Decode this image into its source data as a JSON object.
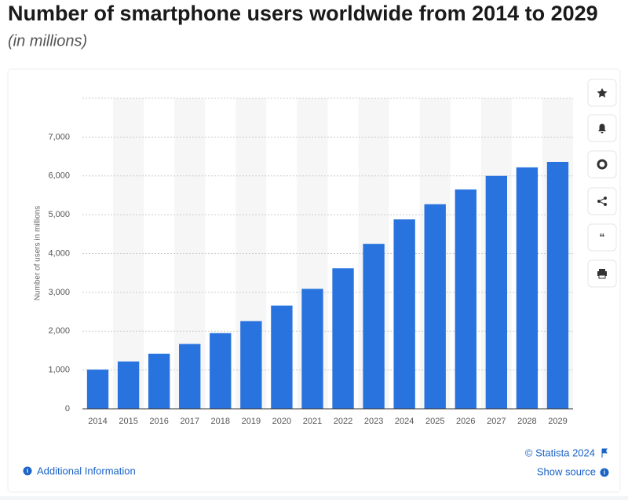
{
  "chart_data": {
    "type": "bar",
    "title": "Number of smartphone users worldwide from 2014 to 2029",
    "subtitle": "(in millions)",
    "y_label": "Number of users in millions",
    "categories": [
      "2014",
      "2015",
      "2016",
      "2017",
      "2018",
      "2019",
      "2020",
      "2021",
      "2022",
      "2023",
      "2024",
      "2025",
      "2026",
      "2027",
      "2028",
      "2029"
    ],
    "values": [
      1010,
      1220,
      1420,
      1670,
      1950,
      2260,
      2660,
      3090,
      3620,
      4250,
      4880,
      5270,
      5650,
      6000,
      6220,
      6360
    ],
    "color": "#2873de",
    "ylim": [
      0,
      8000
    ],
    "yticks": [
      0,
      {
        "value": 1000,
        "label": "1,000"
      },
      {
        "value": 2000,
        "label": "2,000"
      },
      {
        "value": 3000,
        "label": "3,000"
      },
      {
        "value": 4000,
        "label": "4,000"
      },
      {
        "value": 5000,
        "label": "5,000"
      },
      {
        "value": 6000,
        "label": "6,000"
      },
      {
        "value": 7000,
        "label": "7,000"
      }
    ],
    "grid": true
  },
  "footer": {
    "copyright": "© Statista 2024",
    "additional_info": "Additional Information",
    "show_source": "Show source"
  }
}
